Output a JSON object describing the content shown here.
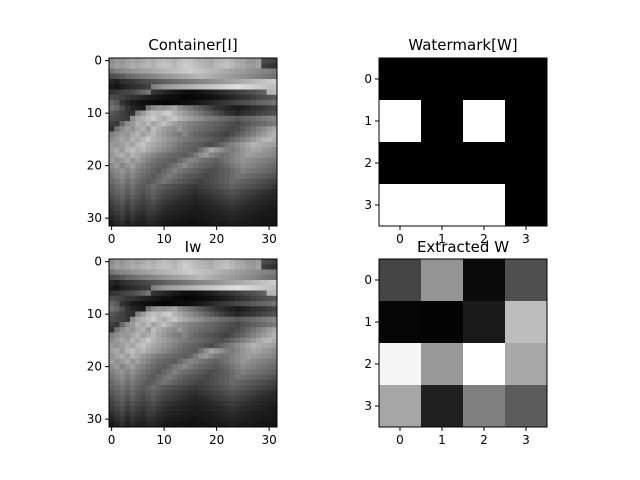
{
  "chart_data": [
    {
      "type": "heatmap",
      "title": "Container[I]",
      "colormap": "gray",
      "shape": [
        32,
        32
      ],
      "xticks": [
        "0",
        "10",
        "20",
        "30"
      ],
      "yticks": [
        "0",
        "10",
        "20",
        "30"
      ],
      "xlim": [
        -0.5,
        31.5
      ],
      "ylim": [
        31.5,
        -0.5
      ],
      "values": [
        [
          0.55,
          0.6,
          0.58,
          0.62,
          0.65,
          0.63,
          0.66,
          0.7,
          0.68,
          0.72,
          0.75,
          0.73,
          0.7,
          0.74,
          0.78,
          0.76,
          0.72,
          0.7,
          0.68,
          0.66,
          0.7,
          0.72,
          0.74,
          0.7,
          0.66,
          0.64,
          0.6,
          0.58,
          0.62,
          0.3,
          0.28,
          0.25
        ],
        [
          0.58,
          0.62,
          0.6,
          0.64,
          0.68,
          0.66,
          0.7,
          0.72,
          0.7,
          0.74,
          0.76,
          0.75,
          0.72,
          0.76,
          0.8,
          0.78,
          0.74,
          0.72,
          0.7,
          0.68,
          0.72,
          0.74,
          0.76,
          0.72,
          0.68,
          0.66,
          0.62,
          0.6,
          0.64,
          0.25,
          0.22,
          0.2
        ],
        [
          0.45,
          0.5,
          0.52,
          0.55,
          0.58,
          0.6,
          0.62,
          0.64,
          0.66,
          0.68,
          0.7,
          0.72,
          0.74,
          0.76,
          0.78,
          0.8,
          0.78,
          0.76,
          0.74,
          0.72,
          0.7,
          0.68,
          0.66,
          0.64,
          0.62,
          0.6,
          0.58,
          0.56,
          0.54,
          0.52,
          0.5,
          0.48
        ],
        [
          0.3,
          0.32,
          0.35,
          0.4,
          0.42,
          0.45,
          0.48,
          0.5,
          0.52,
          0.55,
          0.58,
          0.6,
          0.62,
          0.64,
          0.66,
          0.68,
          0.7,
          0.72,
          0.7,
          0.68,
          0.66,
          0.64,
          0.62,
          0.6,
          0.58,
          0.56,
          0.54,
          0.52,
          0.5,
          0.48,
          0.46,
          0.44
        ],
        [
          0.15,
          0.12,
          0.18,
          0.2,
          0.22,
          0.25,
          0.28,
          0.3,
          0.32,
          0.35,
          0.38,
          0.4,
          0.42,
          0.44,
          0.46,
          0.48,
          0.5,
          0.52,
          0.54,
          0.56,
          0.58,
          0.6,
          0.62,
          0.64,
          0.66,
          0.68,
          0.7,
          0.72,
          0.74,
          0.76,
          0.78,
          0.8
        ],
        [
          0.1,
          0.08,
          0.12,
          0.15,
          0.18,
          0.2,
          0.22,
          0.25,
          0.5,
          0.55,
          0.6,
          0.62,
          0.64,
          0.66,
          0.68,
          0.7,
          0.72,
          0.74,
          0.76,
          0.78,
          0.8,
          0.82,
          0.84,
          0.86,
          0.88,
          0.86,
          0.84,
          0.82,
          0.8,
          0.78,
          0.76,
          0.74
        ],
        [
          0.2,
          0.22,
          0.25,
          0.28,
          0.3,
          0.35,
          0.4,
          0.45,
          0.2,
          0.18,
          0.15,
          0.12,
          0.1,
          0.08,
          0.06,
          0.05,
          0.06,
          0.08,
          0.1,
          0.12,
          0.15,
          0.18,
          0.2,
          0.22,
          0.25,
          0.28,
          0.3,
          0.32,
          0.35,
          0.38,
          0.7,
          0.72
        ],
        [
          0.3,
          0.28,
          0.25,
          0.22,
          0.2,
          0.18,
          0.15,
          0.12,
          0.1,
          0.08,
          0.06,
          0.05,
          0.04,
          0.03,
          0.02,
          0.02,
          0.03,
          0.04,
          0.05,
          0.06,
          0.08,
          0.1,
          0.12,
          0.15,
          0.18,
          0.2,
          0.22,
          0.25,
          0.28,
          0.3,
          0.32,
          0.35
        ],
        [
          0.4,
          0.35,
          0.2,
          0.15,
          0.1,
          0.08,
          0.06,
          0.05,
          0.04,
          0.03,
          0.02,
          0.02,
          0.03,
          0.04,
          0.05,
          0.06,
          0.08,
          0.1,
          0.12,
          0.15,
          0.18,
          0.2,
          0.22,
          0.25,
          0.28,
          0.3,
          0.32,
          0.35,
          0.38,
          0.4,
          0.42,
          0.45
        ],
        [
          0.45,
          0.4,
          0.3,
          0.2,
          0.15,
          0.12,
          0.1,
          0.45,
          0.55,
          0.6,
          0.58,
          0.62,
          0.65,
          0.55,
          0.5,
          0.45,
          0.4,
          0.35,
          0.3,
          0.25,
          0.2,
          0.18,
          0.15,
          0.12,
          0.1,
          0.12,
          0.15,
          0.18,
          0.2,
          0.22,
          0.25,
          0.28
        ],
        [
          0.35,
          0.3,
          0.25,
          0.2,
          0.18,
          0.5,
          0.6,
          0.7,
          0.75,
          0.72,
          0.78,
          0.8,
          0.7,
          0.65,
          0.6,
          0.55,
          0.5,
          0.45,
          0.4,
          0.35,
          0.3,
          0.25,
          0.2,
          0.18,
          0.15,
          0.18,
          0.2,
          0.22,
          0.25,
          0.28,
          0.3,
          0.32
        ],
        [
          0.3,
          0.28,
          0.25,
          0.22,
          0.55,
          0.65,
          0.7,
          0.75,
          0.8,
          0.72,
          0.68,
          0.74,
          0.78,
          0.7,
          0.66,
          0.62,
          0.58,
          0.55,
          0.5,
          0.48,
          0.45,
          0.42,
          0.4,
          0.38,
          0.35,
          0.38,
          0.4,
          0.42,
          0.45,
          0.48,
          0.5,
          0.52
        ],
        [
          0.25,
          0.22,
          0.4,
          0.55,
          0.6,
          0.7,
          0.66,
          0.72,
          0.64,
          0.7,
          0.75,
          0.68,
          0.62,
          0.58,
          0.55,
          0.5,
          0.48,
          0.45,
          0.42,
          0.4,
          0.38,
          0.35,
          0.32,
          0.3,
          0.28,
          0.32,
          0.35,
          0.38,
          0.4,
          0.42,
          0.45,
          0.48
        ],
        [
          0.2,
          0.45,
          0.55,
          0.62,
          0.58,
          0.66,
          0.7,
          0.6,
          0.74,
          0.68,
          0.62,
          0.58,
          0.55,
          0.6,
          0.52,
          0.48,
          0.45,
          0.42,
          0.4,
          0.38,
          0.35,
          0.32,
          0.3,
          0.28,
          0.3,
          0.35,
          0.4,
          0.45,
          0.5,
          0.55,
          0.6,
          0.65
        ],
        [
          0.5,
          0.55,
          0.6,
          0.58,
          0.65,
          0.7,
          0.62,
          0.68,
          0.72,
          0.64,
          0.6,
          0.55,
          0.5,
          0.48,
          0.52,
          0.45,
          0.4,
          0.38,
          0.35,
          0.32,
          0.3,
          0.28,
          0.25,
          0.3,
          0.35,
          0.4,
          0.45,
          0.5,
          0.55,
          0.6,
          0.65,
          0.7
        ],
        [
          0.55,
          0.6,
          0.65,
          0.62,
          0.7,
          0.66,
          0.72,
          0.78,
          0.7,
          0.66,
          0.62,
          0.58,
          0.55,
          0.5,
          0.48,
          0.45,
          0.42,
          0.4,
          0.38,
          0.35,
          0.32,
          0.3,
          0.35,
          0.4,
          0.45,
          0.5,
          0.55,
          0.6,
          0.65,
          0.7,
          0.72,
          0.68
        ],
        [
          0.6,
          0.58,
          0.62,
          0.68,
          0.64,
          0.72,
          0.76,
          0.7,
          0.66,
          0.62,
          0.58,
          0.54,
          0.5,
          0.46,
          0.42,
          0.4,
          0.38,
          0.35,
          0.32,
          0.3,
          0.35,
          0.4,
          0.45,
          0.5,
          0.55,
          0.6,
          0.65,
          0.7,
          0.68,
          0.66,
          0.64,
          0.62
        ],
        [
          0.62,
          0.66,
          0.6,
          0.7,
          0.74,
          0.68,
          0.72,
          0.66,
          0.62,
          0.58,
          0.54,
          0.5,
          0.46,
          0.42,
          0.4,
          0.38,
          0.36,
          0.45,
          0.55,
          0.65,
          0.6,
          0.55,
          0.5,
          0.48,
          0.52,
          0.58,
          0.62,
          0.66,
          0.64,
          0.6,
          0.58,
          0.55
        ],
        [
          0.58,
          0.64,
          0.68,
          0.62,
          0.7,
          0.66,
          0.6,
          0.56,
          0.52,
          0.48,
          0.45,
          0.42,
          0.4,
          0.38,
          0.36,
          0.4,
          0.48,
          0.56,
          0.6,
          0.52,
          0.48,
          0.44,
          0.46,
          0.5,
          0.54,
          0.58,
          0.62,
          0.6,
          0.58,
          0.56,
          0.54,
          0.52
        ],
        [
          0.62,
          0.56,
          0.6,
          0.66,
          0.58,
          0.62,
          0.56,
          0.5,
          0.46,
          0.42,
          0.4,
          0.38,
          0.36,
          0.42,
          0.48,
          0.52,
          0.5,
          0.46,
          0.42,
          0.4,
          0.38,
          0.42,
          0.46,
          0.5,
          0.54,
          0.58,
          0.56,
          0.54,
          0.52,
          0.5,
          0.48,
          0.46
        ],
        [
          0.55,
          0.6,
          0.52,
          0.58,
          0.62,
          0.54,
          0.5,
          0.46,
          0.42,
          0.38,
          0.36,
          0.4,
          0.46,
          0.5,
          0.54,
          0.48,
          0.44,
          0.4,
          0.38,
          0.36,
          0.34,
          0.38,
          0.42,
          0.46,
          0.5,
          0.54,
          0.52,
          0.5,
          0.48,
          0.46,
          0.44,
          0.42
        ],
        [
          0.5,
          0.54,
          0.58,
          0.52,
          0.56,
          0.5,
          0.46,
          0.42,
          0.38,
          0.35,
          0.4,
          0.45,
          0.5,
          0.46,
          0.42,
          0.4,
          0.38,
          0.35,
          0.32,
          0.3,
          0.32,
          0.35,
          0.38,
          0.42,
          0.46,
          0.5,
          0.48,
          0.46,
          0.44,
          0.42,
          0.4,
          0.38
        ],
        [
          0.46,
          0.5,
          0.54,
          0.48,
          0.52,
          0.46,
          0.42,
          0.38,
          0.35,
          0.4,
          0.44,
          0.48,
          0.44,
          0.4,
          0.36,
          0.34,
          0.32,
          0.3,
          0.28,
          0.3,
          0.32,
          0.35,
          0.38,
          0.42,
          0.46,
          0.44,
          0.42,
          0.4,
          0.38,
          0.36,
          0.34,
          0.32
        ],
        [
          0.42,
          0.46,
          0.5,
          0.44,
          0.48,
          0.42,
          0.38,
          0.35,
          0.38,
          0.42,
          0.46,
          0.42,
          0.38,
          0.35,
          0.32,
          0.3,
          0.28,
          0.26,
          0.28,
          0.3,
          0.32,
          0.35,
          0.38,
          0.42,
          0.4,
          0.38,
          0.36,
          0.34,
          0.32,
          0.3,
          0.28,
          0.26
        ],
        [
          0.38,
          0.42,
          0.46,
          0.4,
          0.44,
          0.38,
          0.35,
          0.38,
          0.42,
          0.38,
          0.35,
          0.32,
          0.3,
          0.28,
          0.26,
          0.24,
          0.22,
          0.24,
          0.26,
          0.28,
          0.3,
          0.32,
          0.35,
          0.38,
          0.36,
          0.34,
          0.32,
          0.3,
          0.28,
          0.26,
          0.24,
          0.22
        ],
        [
          0.34,
          0.38,
          0.42,
          0.36,
          0.4,
          0.35,
          0.32,
          0.35,
          0.38,
          0.34,
          0.3,
          0.28,
          0.26,
          0.24,
          0.22,
          0.2,
          0.18,
          0.2,
          0.22,
          0.24,
          0.26,
          0.28,
          0.3,
          0.32,
          0.3,
          0.28,
          0.26,
          0.24,
          0.22,
          0.2,
          0.18,
          0.16
        ],
        [
          0.3,
          0.34,
          0.38,
          0.32,
          0.36,
          0.32,
          0.28,
          0.32,
          0.35,
          0.3,
          0.26,
          0.24,
          0.22,
          0.2,
          0.18,
          0.16,
          0.15,
          0.16,
          0.18,
          0.2,
          0.22,
          0.24,
          0.26,
          0.28,
          0.26,
          0.24,
          0.22,
          0.2,
          0.18,
          0.16,
          0.15,
          0.14
        ],
        [
          0.26,
          0.3,
          0.34,
          0.28,
          0.32,
          0.28,
          0.25,
          0.28,
          0.3,
          0.26,
          0.22,
          0.2,
          0.18,
          0.16,
          0.15,
          0.14,
          0.13,
          0.14,
          0.15,
          0.16,
          0.18,
          0.2,
          0.22,
          0.24,
          0.22,
          0.2,
          0.18,
          0.16,
          0.15,
          0.14,
          0.13,
          0.12
        ],
        [
          0.22,
          0.26,
          0.3,
          0.24,
          0.28,
          0.24,
          0.22,
          0.25,
          0.26,
          0.22,
          0.18,
          0.16,
          0.15,
          0.14,
          0.13,
          0.12,
          0.11,
          0.12,
          0.13,
          0.14,
          0.15,
          0.16,
          0.18,
          0.2,
          0.18,
          0.16,
          0.15,
          0.14,
          0.13,
          0.12,
          0.11,
          0.1
        ],
        [
          0.18,
          0.22,
          0.26,
          0.2,
          0.24,
          0.2,
          0.18,
          0.22,
          0.22,
          0.18,
          0.15,
          0.14,
          0.13,
          0.12,
          0.11,
          0.1,
          0.1,
          0.1,
          0.11,
          0.12,
          0.13,
          0.14,
          0.15,
          0.16,
          0.15,
          0.14,
          0.13,
          0.12,
          0.11,
          0.1,
          0.1,
          0.09
        ],
        [
          0.14,
          0.18,
          0.22,
          0.16,
          0.2,
          0.16,
          0.15,
          0.18,
          0.18,
          0.15,
          0.12,
          0.11,
          0.1,
          0.1,
          0.09,
          0.09,
          0.08,
          0.09,
          0.1,
          0.1,
          0.11,
          0.12,
          0.13,
          0.14,
          0.13,
          0.12,
          0.11,
          0.1,
          0.1,
          0.09,
          0.09,
          0.08
        ],
        [
          0.1,
          0.14,
          0.18,
          0.12,
          0.16,
          0.12,
          0.12,
          0.15,
          0.15,
          0.12,
          0.1,
          0.09,
          0.08,
          0.08,
          0.08,
          0.07,
          0.07,
          0.08,
          0.08,
          0.09,
          0.1,
          0.1,
          0.11,
          0.12,
          0.11,
          0.1,
          0.1,
          0.09,
          0.09,
          0.08,
          0.08,
          0.07
        ]
      ]
    },
    {
      "type": "heatmap",
      "title": "Watermark[W]",
      "colormap": "gray",
      "shape": [
        4,
        4
      ],
      "xticks": [
        "0",
        "1",
        "2",
        "3"
      ],
      "yticks": [
        "0",
        "1",
        "2",
        "3"
      ],
      "xlim": [
        -0.5,
        3.5
      ],
      "ylim": [
        3.5,
        -0.5
      ],
      "values": [
        [
          0,
          0,
          0,
          0
        ],
        [
          1,
          0,
          1,
          0
        ],
        [
          0,
          0,
          0,
          0
        ],
        [
          1,
          1,
          1,
          0
        ]
      ]
    },
    {
      "type": "heatmap",
      "title": "Iw",
      "colormap": "gray",
      "shape": [
        32,
        32
      ],
      "same_as": "Container[I]",
      "xticks": [
        "0",
        "10",
        "20",
        "30"
      ],
      "yticks": [
        "0",
        "10",
        "20",
        "30"
      ],
      "xlim": [
        -0.5,
        31.5
      ],
      "ylim": [
        31.5,
        -0.5
      ]
    },
    {
      "type": "heatmap",
      "title": "Extracted W",
      "colormap": "gray",
      "shape": [
        4,
        4
      ],
      "xticks": [
        "0",
        "1",
        "2",
        "3"
      ],
      "yticks": [
        "0",
        "1",
        "2",
        "3"
      ],
      "xlim": [
        -0.5,
        3.5
      ],
      "ylim": [
        3.5,
        -0.5
      ],
      "values": [
        [
          0.27,
          0.58,
          0.04,
          0.31
        ],
        [
          0.02,
          0.01,
          0.1,
          0.74
        ],
        [
          0.96,
          0.6,
          1.0,
          0.66
        ],
        [
          0.65,
          0.12,
          0.5,
          0.36
        ]
      ]
    }
  ]
}
